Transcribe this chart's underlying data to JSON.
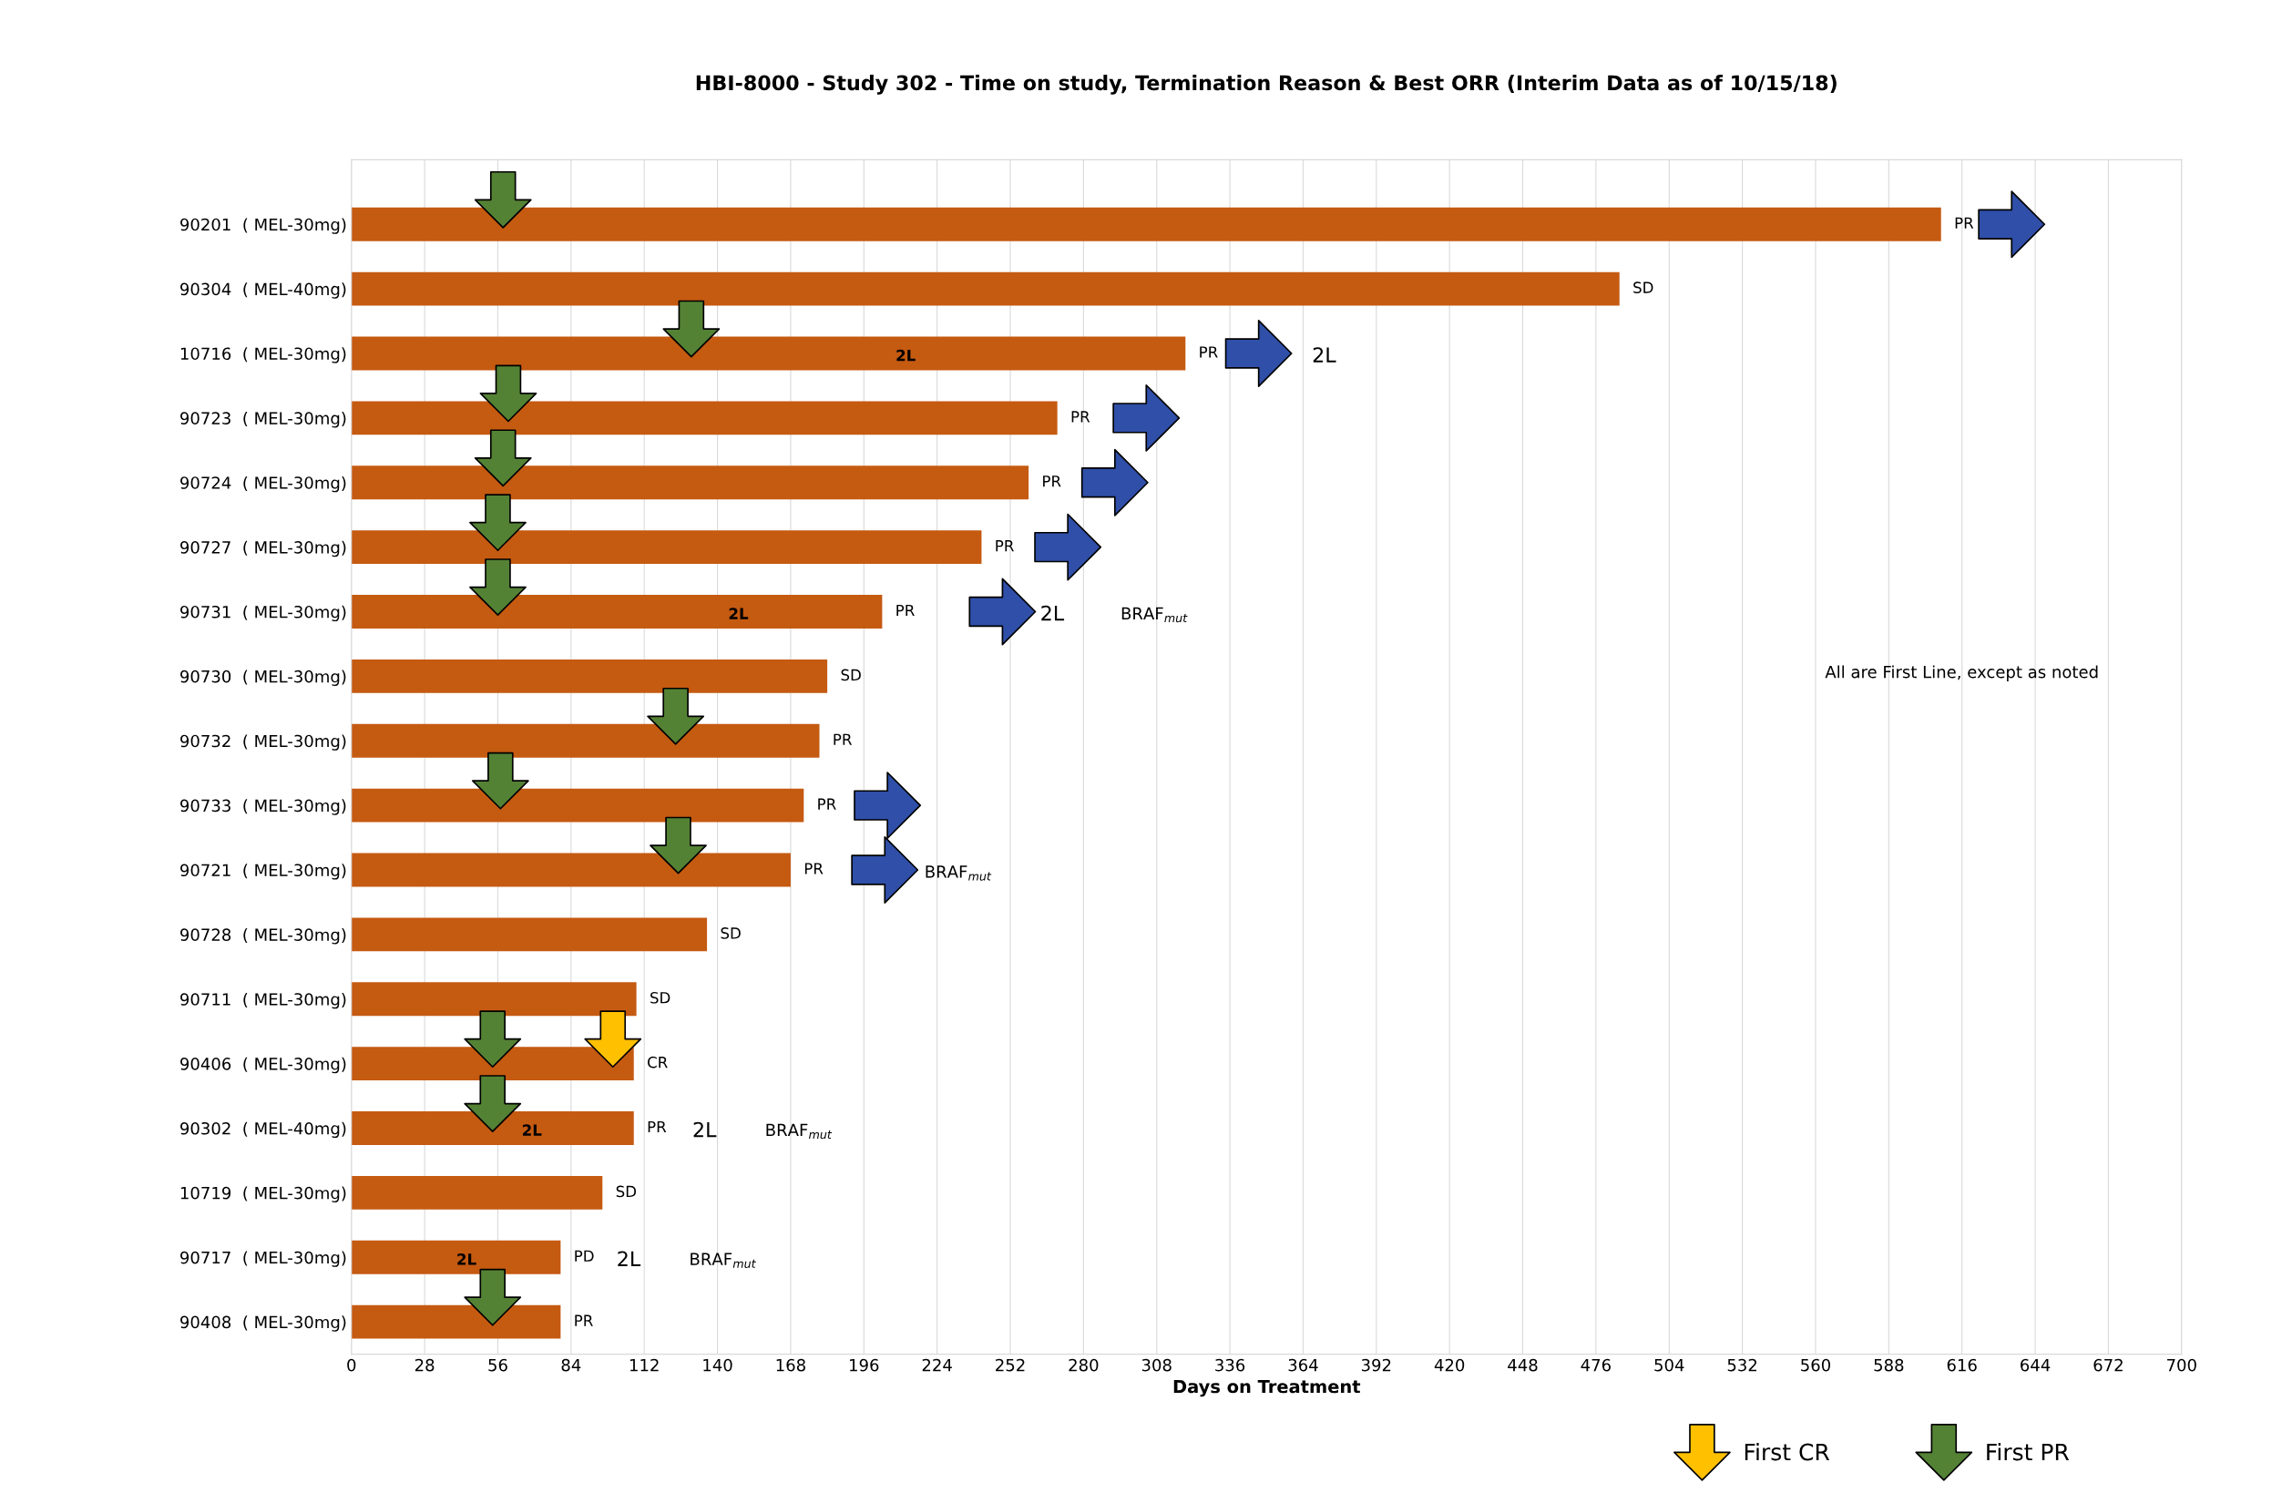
{
  "chart_data": {
    "type": "bar",
    "orientation": "horizontal",
    "title": "HBI-8000 - Study 302 - Time on study, Termination Reason & Best ORR (Interim Data as of 10/15/18)",
    "xlabel": "Days on Treatment",
    "categories": [
      "90201  ( MEL-30mg)",
      "90304  ( MEL-40mg)",
      "10716  ( MEL-30mg)",
      "90723  ( MEL-30mg)",
      "90724  ( MEL-30mg)",
      "90727  ( MEL-30mg)",
      "90731  ( MEL-30mg)",
      "90730  ( MEL-30mg)",
      "90732  ( MEL-30mg)",
      "90733  ( MEL-30mg)",
      "90721  ( MEL-30mg)",
      "90728  ( MEL-30mg)",
      "90711  ( MEL-30mg)",
      "90406  ( MEL-30mg)",
      "90302  ( MEL-40mg)",
      "10719  ( MEL-30mg)",
      "90717  ( MEL-30mg)",
      "90408  ( MEL-30mg)"
    ],
    "series": [
      {
        "color": "#c55a11",
        "values": [
          608,
          485,
          319,
          270,
          259,
          241,
          203,
          182,
          179,
          173,
          168,
          136,
          109,
          108,
          108,
          96,
          80,
          80
        ],
        "value_labels": [
          "PR",
          "SD",
          "PR",
          "PR",
          "PR",
          "PR",
          "PR",
          "SD",
          "PR",
          "PR",
          "PR",
          "SD",
          "SD",
          "CR",
          "PR",
          "SD",
          "PD",
          "PR"
        ]
      },
      {
        "type": "scatter",
        "name": "First CR",
        "color": "#ffc000",
        "values": [
          null,
          null,
          null,
          null,
          null,
          null,
          null,
          null,
          null,
          null,
          null,
          null,
          null,
          100,
          null,
          null,
          null,
          null
        ]
      },
      {
        "type": "scatter",
        "name": "First PR",
        "color": "#548235",
        "values": [
          58,
          null,
          130,
          60,
          58,
          56,
          56,
          null,
          124,
          57,
          125,
          null,
          null,
          54,
          54,
          null,
          null,
          54
        ]
      },
      {
        "type": "scatter",
        "color": "#2f4fa8",
        "values": [
          635,
          null,
          347,
          304,
          292,
          274,
          249,
          null,
          null,
          205,
          204,
          null,
          null,
          null,
          null,
          null,
          null,
          null
        ]
      }
    ],
    "xlim": [
      0,
      700
    ],
    "xticks": [
      0,
      28,
      56,
      84,
      112,
      140,
      168,
      196,
      224,
      252,
      280,
      308,
      336,
      364,
      392,
      420,
      448,
      476,
      504,
      532,
      560,
      588,
      616,
      644,
      672,
      700
    ],
    "grid": "x",
    "legend": "bottom right",
    "annotations": [
      "All are First Line, except as noted",
      "2L",
      "2L",
      "2L",
      "2L",
      "2L",
      "2L",
      "BRAF$_{mut}$",
      "BRAF$_{mut}$",
      "2L",
      "BRAF$_{mut}$",
      "2L",
      "BRAF$_{mut}$"
    ]
  }
}
